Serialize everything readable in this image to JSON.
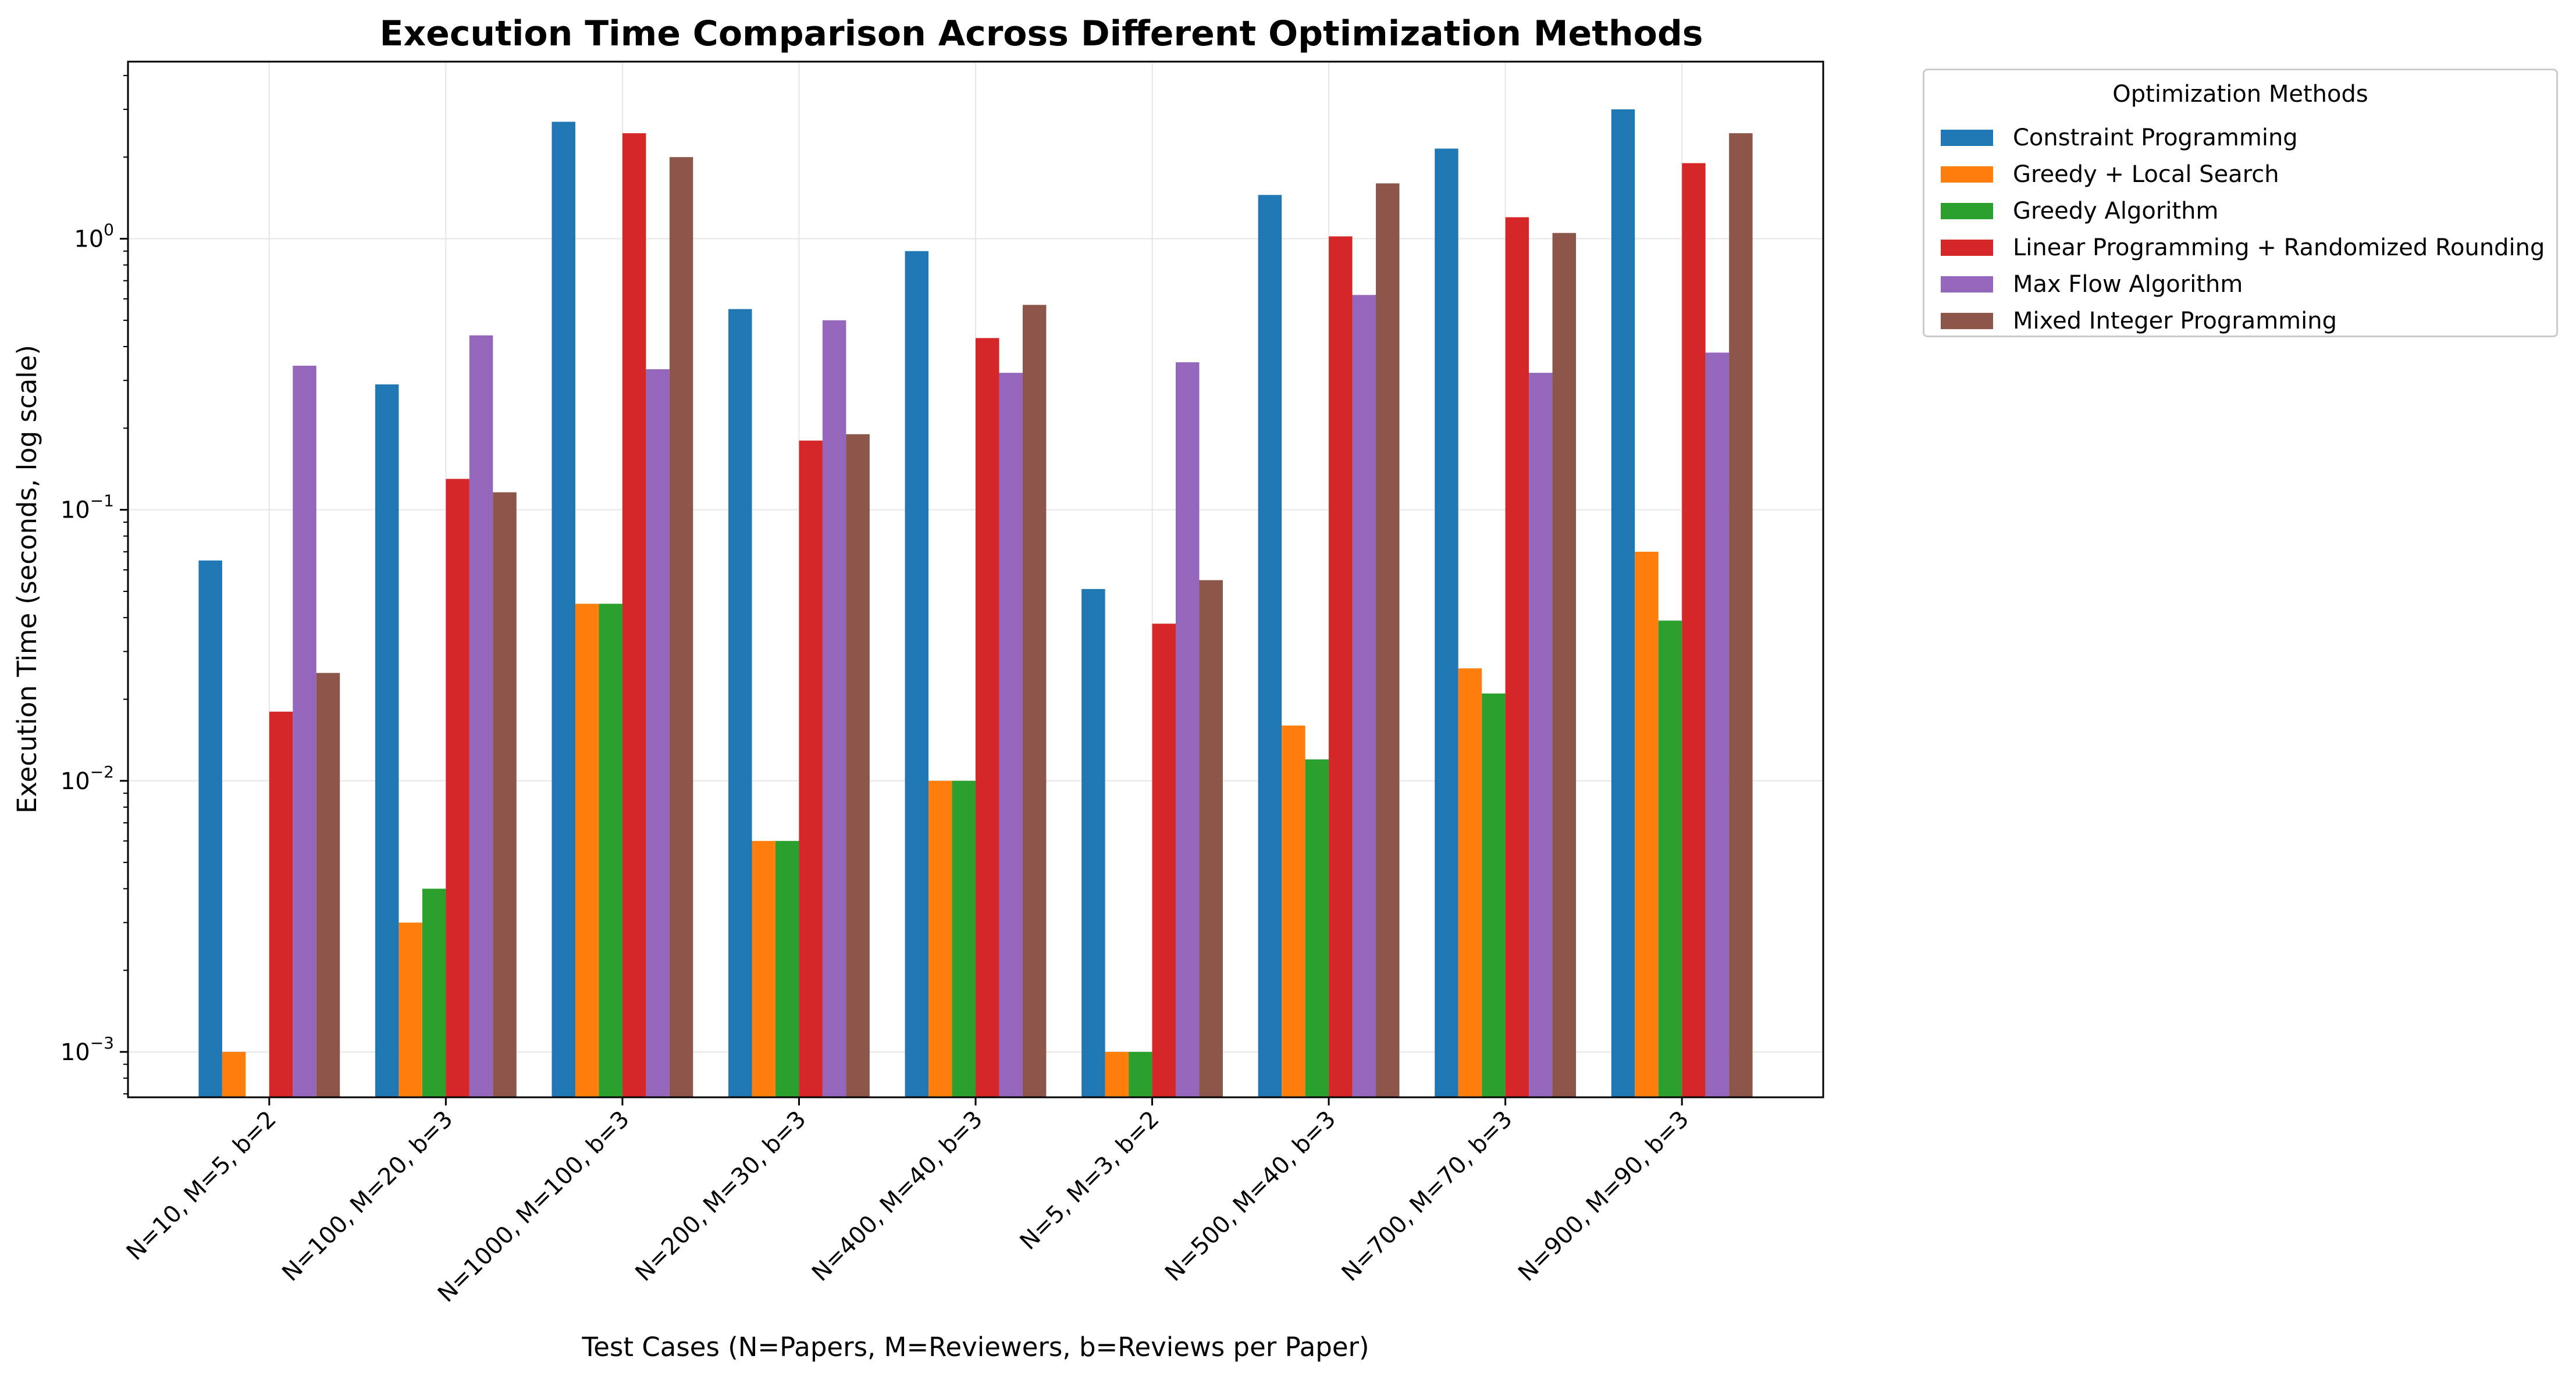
{
  "chart_data": {
    "type": "bar",
    "title": "Execution Time Comparison Across Different Optimization Methods",
    "xlabel": "Test Cases (N=Papers, M=Reviewers, b=Reviews per Paper)",
    "ylabel": "Execution Time (seconds, log scale)",
    "yscale": "log",
    "ylim": [
      0.00068,
      4.5
    ],
    "yticks": [
      {
        "value": 0.001,
        "base": "10",
        "exp": "−3"
      },
      {
        "value": 0.01,
        "base": "10",
        "exp": "−2"
      },
      {
        "value": 0.1,
        "base": "10",
        "exp": "−1"
      },
      {
        "value": 1,
        "base": "10",
        "exp": "0"
      }
    ],
    "grid": true,
    "legend_position": "outside upper right",
    "legend_title": "Optimization Methods",
    "categories": [
      "N=10, M=5, b=2",
      "N=100, M=20, b=3",
      "N=1000, M=100, b=3",
      "N=200, M=30, b=3",
      "N=400, M=40, b=3",
      "N=5, M=3, b=2",
      "N=500, M=40, b=3",
      "N=700, M=70, b=3",
      "N=900, M=90, b=3"
    ],
    "series": [
      {
        "name": "Constraint Programming",
        "color": "#1f77b4",
        "values": [
          0.065,
          0.29,
          2.7,
          0.55,
          0.9,
          0.051,
          1.45,
          2.15,
          3.0
        ]
      },
      {
        "name": "Greedy + Local Search",
        "color": "#ff7f0e",
        "values": [
          0.001,
          0.003,
          0.045,
          0.006,
          0.01,
          0.001,
          0.016,
          0.026,
          0.07
        ]
      },
      {
        "name": "Greedy Algorithm",
        "color": "#2ca02c",
        "values": [
          null,
          0.004,
          0.045,
          0.006,
          0.01,
          0.001,
          0.012,
          0.021,
          0.039
        ]
      },
      {
        "name": "Linear Programming + Randomized Rounding",
        "color": "#d62728",
        "values": [
          0.018,
          0.13,
          2.45,
          0.18,
          0.43,
          0.038,
          1.02,
          1.2,
          1.9
        ]
      },
      {
        "name": "Max Flow Algorithm",
        "color": "#9467bd",
        "values": [
          0.34,
          0.44,
          0.33,
          0.5,
          0.32,
          0.35,
          0.62,
          0.32,
          0.38
        ]
      },
      {
        "name": "Mixed Integer Programming",
        "color": "#8c564b",
        "values": [
          0.025,
          0.116,
          2.0,
          0.19,
          0.57,
          0.055,
          1.6,
          1.05,
          2.45
        ]
      }
    ]
  }
}
